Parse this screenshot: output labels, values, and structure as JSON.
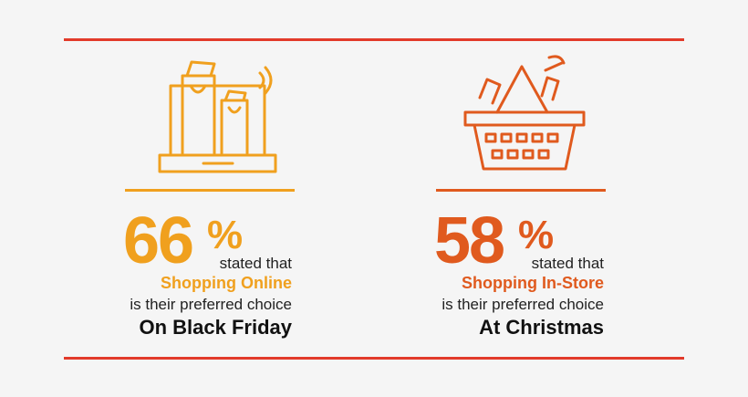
{
  "panels": [
    {
      "number": 66,
      "percent_sign": "%",
      "line1": "stated that",
      "highlight": "Shopping Online",
      "line2": "is their preferred choice",
      "occasion": "On Black Friday"
    },
    {
      "number": 58,
      "percent_sign": "%",
      "line1": "stated that",
      "highlight": "Shopping In-Store",
      "line2": "is their preferred choice",
      "occasion": "At Christmas"
    }
  ]
}
